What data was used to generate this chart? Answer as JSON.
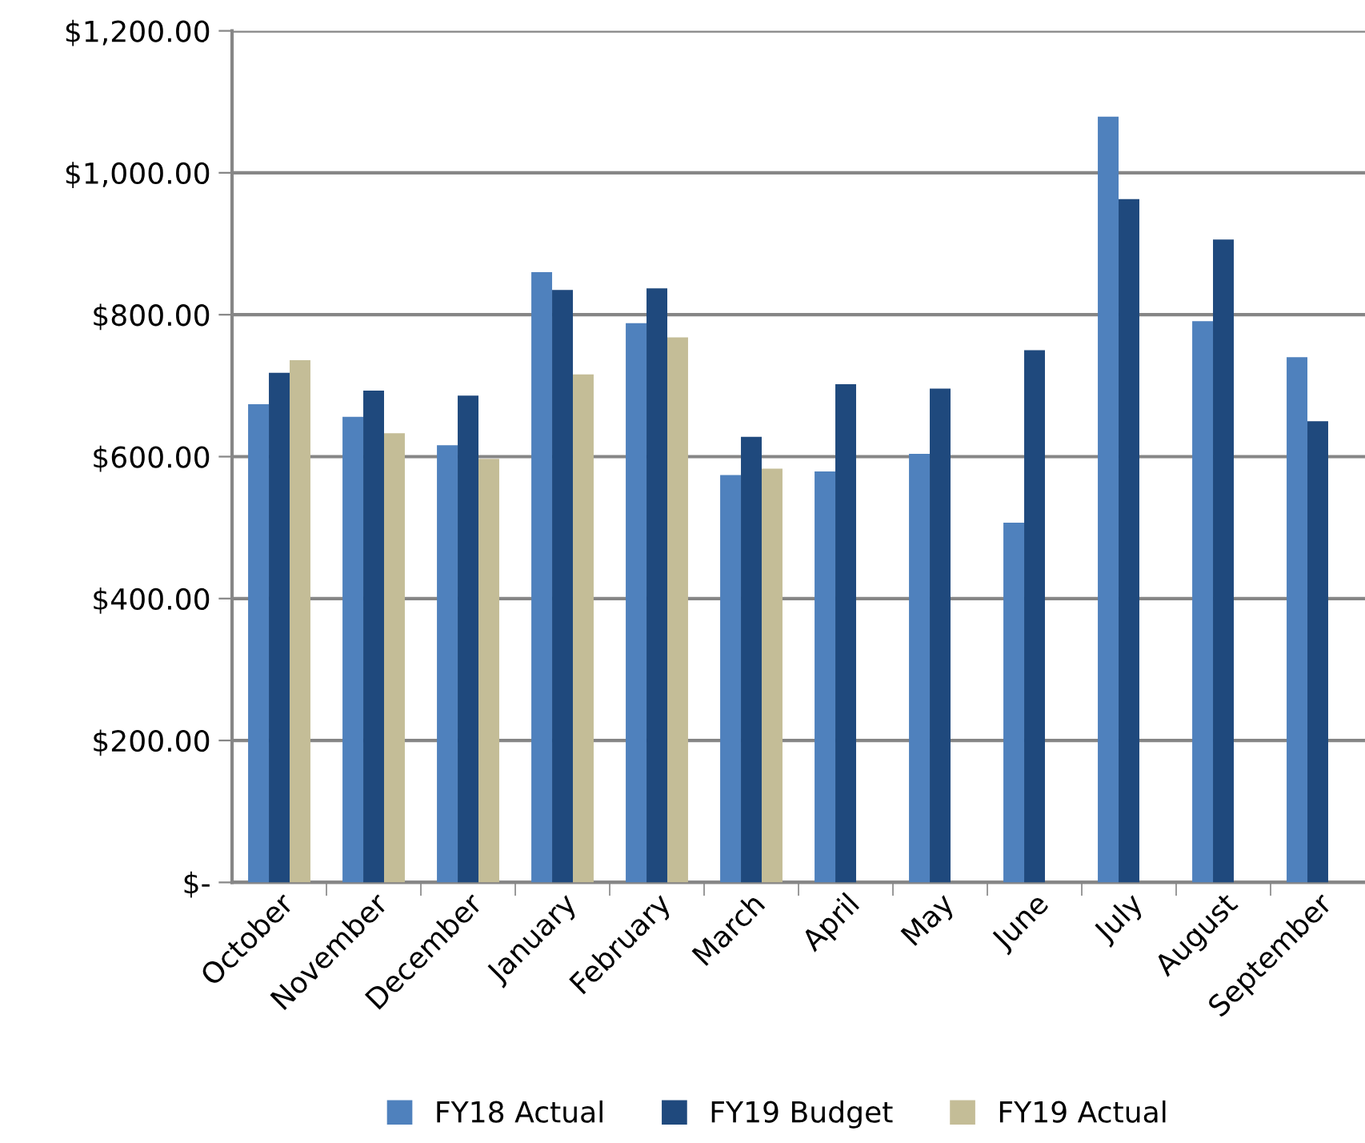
{
  "chart_data": {
    "type": "bar",
    "categories": [
      "October",
      "November",
      "December",
      "January",
      "February",
      "March",
      "April",
      "May",
      "June",
      "July",
      "August",
      "September"
    ],
    "series": [
      {
        "name": "FY18 Actual",
        "color": "#4f81bd",
        "values": [
          674,
          656,
          616,
          860,
          788,
          574,
          579,
          604,
          507,
          1079,
          791,
          740
        ]
      },
      {
        "name": "FY19 Budget",
        "color": "#1f497d",
        "values": [
          718,
          693,
          686,
          835,
          837,
          628,
          702,
          696,
          750,
          963,
          906,
          650
        ]
      },
      {
        "name": "FY19 Actual",
        "color": "#c4bd97",
        "values": [
          736,
          633,
          597,
          716,
          768,
          583,
          null,
          null,
          null,
          null,
          null,
          null
        ]
      }
    ],
    "ylim": [
      0,
      1200
    ],
    "yticks": [
      {
        "value": 0,
        "label": "$-"
      },
      {
        "value": 200,
        "label": "$200.00"
      },
      {
        "value": 400,
        "label": "$400.00"
      },
      {
        "value": 600,
        "label": "$600.00"
      },
      {
        "value": 800,
        "label": "$800.00"
      },
      {
        "value": 1000,
        "label": "$1,000.00"
      },
      {
        "value": 1200,
        "label": "$1,200.00"
      }
    ],
    "grid": "y",
    "legend": "bottom"
  }
}
